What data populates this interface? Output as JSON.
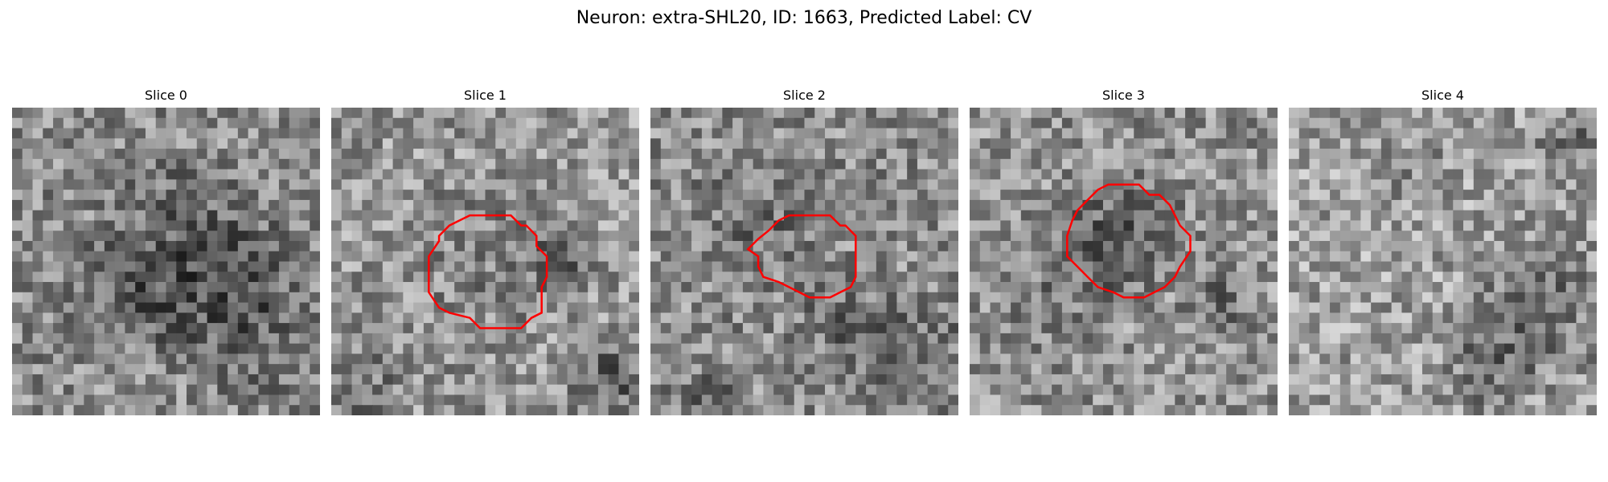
{
  "figure": {
    "title": "Neuron: extra-SHL20, ID: 1663, Predicted Label: CV"
  },
  "slices": [
    {
      "label": "Slice 0",
      "has_outline": false,
      "outline_color": "#ff0000"
    },
    {
      "label": "Slice 1",
      "has_outline": true,
      "outline_color": "#ff0000"
    },
    {
      "label": "Slice 2",
      "has_outline": true,
      "outline_color": "#ff0000"
    },
    {
      "label": "Slice 3",
      "has_outline": true,
      "outline_color": "#ff0000"
    },
    {
      "label": "Slice 4",
      "has_outline": false,
      "outline_color": "#ff0000"
    }
  ],
  "colors": {
    "outline": "#ff0000",
    "background": "#ffffff"
  }
}
